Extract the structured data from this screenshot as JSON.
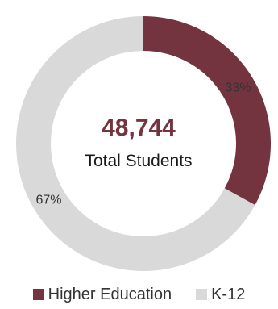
{
  "chart_data": {
    "type": "pie",
    "variant": "donut",
    "title": "",
    "center": {
      "value": "48,744",
      "label": "Total Students"
    },
    "slices": [
      {
        "name": "Higher Education",
        "value": 33,
        "label": "33%",
        "color": "#73343f"
      },
      {
        "name": "K-12",
        "value": 67,
        "label": "67%",
        "color": "#d9d9d9"
      }
    ],
    "legend_position": "bottom",
    "colors": {
      "center_value": "#73343f",
      "slice_label_text": "#333333"
    }
  }
}
